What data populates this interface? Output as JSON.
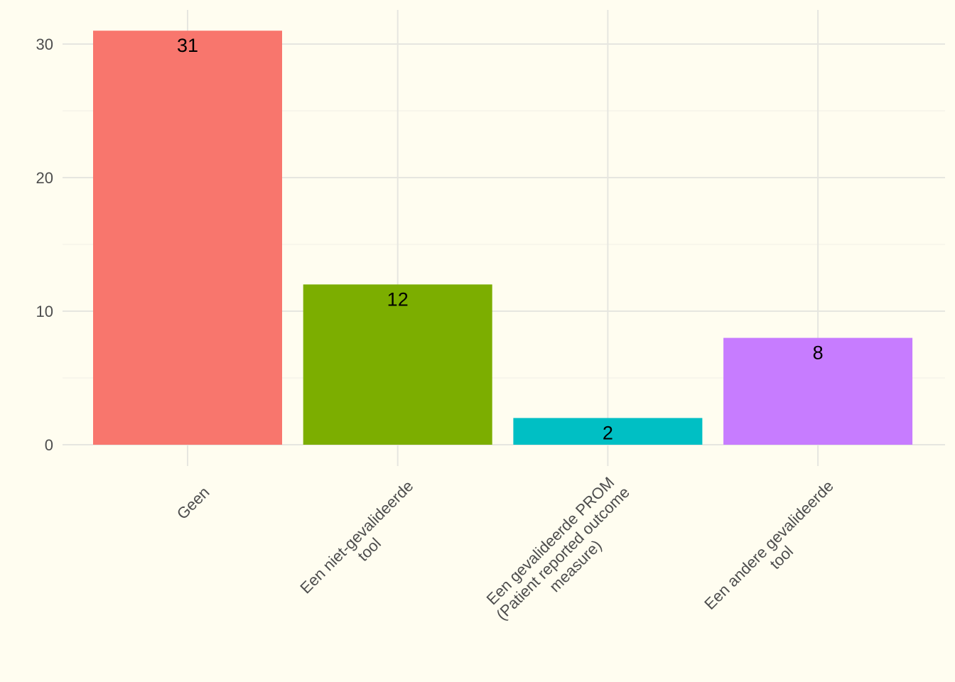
{
  "chart_data": {
    "type": "bar",
    "categories": [
      "Geen",
      "Een niet-gevalideerde\ntool",
      "Een gevalideerde PROM\n(Patient reported outcome\nmeasure)",
      "Een andere gevalideerde\ntool"
    ],
    "values": [
      31,
      12,
      2,
      8
    ],
    "data_labels": [
      "31",
      "12",
      "2",
      "8"
    ],
    "colors": [
      "#f8766d",
      "#7cae00",
      "#00bfc4",
      "#c77cff"
    ],
    "title": "",
    "xlabel": "",
    "ylabel": "",
    "ylim": [
      0,
      32.5
    ],
    "yticks": [
      0,
      10,
      20,
      30
    ],
    "ytick_labels": [
      "0",
      "10",
      "20",
      "30"
    ],
    "x_label_rotation": -45,
    "grid": true,
    "legend": "none",
    "background": "#fffdf0"
  }
}
